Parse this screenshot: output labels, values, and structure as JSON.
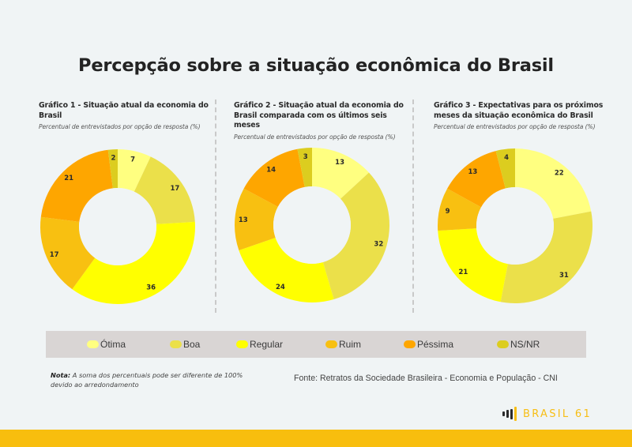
{
  "title": "Percepção sobre a situação econômica do Brasil",
  "legend": [
    {
      "label": "Ótima",
      "color": "#ffff80"
    },
    {
      "label": "Boa",
      "color": "#ebe04a"
    },
    {
      "label": "Regular",
      "color": "#ffff00"
    },
    {
      "label": "Ruim",
      "color": "#f8c011"
    },
    {
      "label": "Péssima",
      "color": "#fea600"
    },
    {
      "label": "NS/NR",
      "color": "#dccd1f"
    }
  ],
  "note": {
    "label": "Nota:",
    "text": " A soma dos percentuais pode ser diferente de 100% devido ao arredondamento"
  },
  "source": "Fonte: Retratos da Sociedade Brasileira - Economia e População - CNI",
  "brand": "BRASIL 61",
  "chart_data": [
    {
      "type": "pie",
      "title": "Gráfico 1 - Situação atual da economia do Brasil",
      "subtitle": "Percentual de entrevistados por opção de resposta (%)",
      "categories": [
        "Ótima",
        "Boa",
        "Regular",
        "Ruim",
        "Péssima",
        "NS/NR"
      ],
      "values": [
        7,
        17,
        36,
        17,
        21,
        2
      ],
      "donut": true
    },
    {
      "type": "pie",
      "title": "Gráfico 2 - Situação atual da economia do Brasil comparada com os últimos seis meses",
      "subtitle": "Percentual de entrevistados por opção de resposta (%)",
      "categories": [
        "Ótima",
        "Boa",
        "Regular",
        "Ruim",
        "Péssima",
        "NS/NR"
      ],
      "values": [
        13,
        32,
        24,
        13,
        14,
        3
      ],
      "donut": true
    },
    {
      "type": "pie",
      "title": "Gráfico 3 - Expectativas para os próximos meses da situação econômica do Brasil",
      "subtitle": "Percentual de entrevistados por opção de resposta (%)",
      "categories": [
        "Ótima",
        "Boa",
        "Regular",
        "Ruim",
        "Péssima",
        "NS/NR"
      ],
      "values": [
        22,
        31,
        21,
        9,
        13,
        4
      ],
      "donut": true
    }
  ]
}
